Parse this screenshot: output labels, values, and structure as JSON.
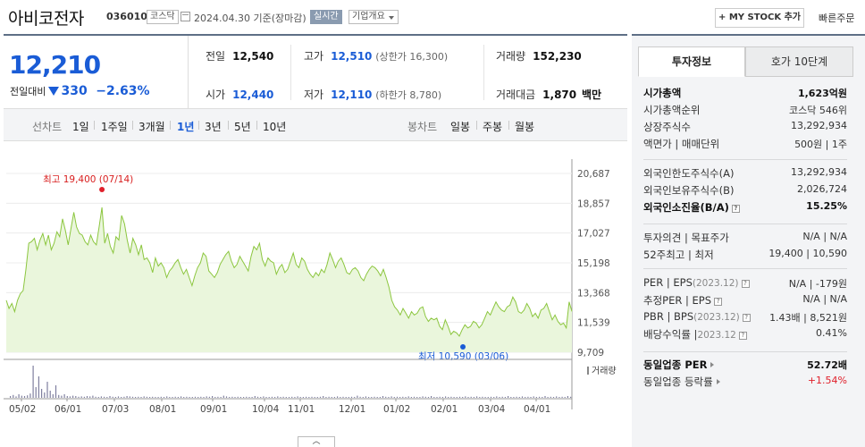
{
  "header": {
    "stock_name": "아비코전자",
    "stock_code": "036010",
    "market_badge": "코스닥",
    "date_text": "2024.04.30  기준(장마감)",
    "realtime_badge": "실시간",
    "company_overview": "기업개요",
    "mystock_button": "+ MY STOCK 추가",
    "quick_order": "빠른주문"
  },
  "summary": {
    "current_price": "12,210",
    "change_label": "전일대비",
    "change_amount": "330",
    "change_percent": "−2.63%",
    "prev_close_label": "전일",
    "prev_close": "12,540",
    "open_label": "시가",
    "open": "12,440",
    "high_label": "고가",
    "high": "12,510",
    "upper_limit": "(상한가 16,300)",
    "low_label": "저가",
    "low": "12,110",
    "lower_limit": "(하한가 8,780)",
    "volume_label": "거래량",
    "volume": "152,230",
    "trade_value_label": "거래대금",
    "trade_value": "1,870",
    "trade_value_unit": "백만"
  },
  "tabs": {
    "line_label": "선차트",
    "periods": [
      "1일",
      "1주일",
      "3개월",
      "1년",
      "3년",
      "5년",
      "10년"
    ],
    "active_period": "1년",
    "candle_label": "봉차트",
    "candle_periods": [
      "일봉",
      "주봉",
      "월봉"
    ]
  },
  "chart_data": {
    "type": "area",
    "y_ticks": [
      "20,687",
      "18,857",
      "17,027",
      "15,198",
      "13,368",
      "11,539",
      "9,709"
    ],
    "ylim": [
      9709,
      20687
    ],
    "x_ticks": [
      "05/02",
      "06/01",
      "07/03",
      "08/01",
      "09/01",
      "10/04",
      "11/01",
      "12/01",
      "01/02",
      "02/01",
      "03/04",
      "04/01"
    ],
    "high_annotation": "최고 19,400 (07/14)",
    "low_annotation": "최저 10,590 (03/06)",
    "volume_legend": "거래량",
    "color": "#8cc63f",
    "series": [
      {
        "values": [
          12900,
          12400,
          12700,
          12200,
          12900,
          13300,
          13500,
          14800,
          16400,
          16500,
          16700,
          16000,
          16600,
          17000,
          16300,
          16900,
          16000,
          16400,
          17100,
          16800,
          17900,
          17200,
          16300,
          17300,
          18300,
          17400,
          17000,
          16900,
          16500,
          16300,
          16900,
          16500,
          16300,
          17400,
          18600,
          16400,
          17000,
          16200,
          15800,
          16800,
          16600,
          18100,
          17600,
          16600,
          15800,
          16700,
          16300,
          15700,
          16300,
          15400,
          15500,
          15200,
          14600,
          15500,
          15000,
          15200,
          14900,
          14300,
          14700,
          14900,
          15200,
          15400,
          14900,
          14500,
          14800,
          14300,
          13800,
          14400,
          14900,
          15200,
          15800,
          15600,
          14700,
          14500,
          14300,
          14600,
          15100,
          15400,
          15700,
          15900,
          15300,
          14900,
          15100,
          15600,
          15300,
          15000,
          14700,
          15600,
          16200,
          16000,
          16400,
          15400,
          15000,
          15500,
          15300,
          15200,
          14500,
          14900,
          15100,
          14600,
          14800,
          15300,
          15800,
          15100,
          14900,
          15500,
          15300,
          14800,
          14500,
          14300,
          14600,
          14400,
          14800,
          14600,
          15100,
          15800,
          15400,
          14900,
          15300,
          15500,
          15100,
          14600,
          14500,
          14800,
          14900,
          14700,
          14300,
          14100,
          14500,
          14800,
          15000,
          14900,
          14700,
          14400,
          14800,
          14300,
          13700,
          12900,
          12500,
          12300,
          12000,
          12400,
          12100,
          11800,
          12200,
          12000,
          12100,
          12400,
          12500,
          11900,
          11600,
          11800,
          11700,
          11800,
          11300,
          11100,
          11700,
          11300,
          10800,
          11000,
          10900,
          10700,
          11100,
          11400,
          11200,
          11300,
          11600,
          11500,
          11200,
          11400,
          11800,
          12200,
          12000,
          12400,
          12800,
          12500,
          12300,
          12200,
          12500,
          12600,
          13100,
          12800,
          12200,
          12100,
          12300,
          12700,
          12400,
          11900,
          12100,
          11800,
          12300,
          12400,
          12700,
          12200,
          11700,
          12000,
          11600,
          11400,
          11500,
          11200,
          12800,
          12210
        ]
      }
    ],
    "volume": [
      0.05,
      0.08,
      0.04,
      0.1,
      0.06,
      0.05,
      0.07,
      0.12,
      0.9,
      0.3,
      0.6,
      0.25,
      0.15,
      0.45,
      0.2,
      0.1,
      0.35,
      0.08,
      0.06,
      0.1,
      0.05,
      0.04,
      0.06,
      0.05,
      0.03,
      0.04,
      0.03,
      0.05,
      0.04,
      0.06,
      0.03,
      0.02,
      0.04,
      0.03,
      0.02,
      0.05,
      0.03,
      0.02,
      0.04,
      0.02,
      0.03,
      0.05,
      0.04,
      0.03,
      0.02,
      0.03,
      0.02,
      0.04,
      0.03,
      0.02,
      0.03,
      0.02,
      0.02,
      0.03,
      0.02,
      0.04,
      0.02,
      0.02,
      0.03,
      0.02,
      0.04,
      0.02,
      0.03,
      0.02,
      0.02,
      0.03,
      0.02,
      0.03,
      0.02,
      0.04,
      0.03,
      0.05,
      0.02,
      0.03,
      0.02,
      0.06,
      0.04,
      0.02,
      0.03,
      0.02,
      0.03,
      0.02,
      0.02,
      0.03,
      0.02,
      0.02,
      0.05,
      0.03,
      0.02,
      0.04,
      0.02,
      0.02,
      0.03,
      0.02,
      0.04,
      0.02,
      0.03,
      0.02,
      0.02,
      0.03,
      0.02,
      0.04,
      0.02,
      0.02,
      0.03,
      0.02,
      0.03,
      0.02,
      0.02,
      0.03,
      0.05,
      0.02,
      0.03,
      0.02,
      0.02,
      0.04,
      0.02,
      0.03,
      0.02,
      0.02,
      0.03,
      0.02,
      0.06,
      0.03,
      0.02,
      0.04,
      0.02,
      0.02,
      0.03,
      0.02,
      0.02,
      0.05,
      0.03,
      0.02,
      0.04,
      0.02,
      0.03,
      0.02,
      0.03,
      0.02,
      0.04,
      0.02,
      0.03,
      0.02,
      0.02,
      0.04,
      0.03,
      0.02,
      0.05,
      0.02,
      0.02,
      0.03,
      0.02,
      0.04,
      0.02,
      0.03,
      0.02,
      0.02,
      0.03,
      0.02,
      0.04,
      0.02,
      0.03,
      0.02,
      0.04,
      0.02,
      0.03,
      0.02,
      0.02,
      0.03,
      0.02,
      0.04,
      0.02,
      0.03,
      0.02,
      0.05,
      0.02,
      0.02,
      0.03,
      0.02,
      0.04,
      0.02,
      0.03,
      0.02,
      0.04,
      0.02,
      0.03,
      0.02,
      0.05,
      0.02,
      0.03,
      0.02,
      0.04,
      0.02,
      0.03,
      0.02,
      0.05,
      0.03
    ]
  },
  "invest_info": {
    "tab_active": "투자정보",
    "tab_inactive": "호가 10단계",
    "rows1": [
      {
        "label": "시가총액",
        "value": "1,623억원",
        "bold": true
      },
      {
        "label": "시가총액순위",
        "value": "코스닥 546위"
      },
      {
        "label": "상장주식수",
        "value": "13,292,934"
      },
      {
        "label": "액면가 | 매매단위",
        "value": "500원 | 1주"
      }
    ],
    "rows2": [
      {
        "label": "외국인한도주식수(A)",
        "value": "13,292,934"
      },
      {
        "label": "외국인보유주식수(B)",
        "value": "2,026,724"
      },
      {
        "label": "외국인소진율(B/A)",
        "value": "15.25%",
        "bold": true
      }
    ],
    "rows3": [
      {
        "label": "투자의견 | 목표주가",
        "value": "N/A | N/A"
      },
      {
        "label": "52주최고 | 최저",
        "value": "19,400 | 10,590"
      }
    ],
    "rows4": [
      {
        "label": "PER | EPS",
        "sub": "(2023.12)",
        "value": "N/A | -179원"
      },
      {
        "label": "추정PER | EPS",
        "value": "N/A | N/A"
      },
      {
        "label": "PBR | BPS",
        "sub": "(2023.12)",
        "value": "1.43배 | 8,521원"
      },
      {
        "label": "배당수익률 |",
        "sub": "2023.12",
        "value": "0.41%"
      }
    ],
    "rows5": [
      {
        "label": "동일업종 PER",
        "value": "52.72배",
        "bold": true
      },
      {
        "label": "동일업종 등락률",
        "value": "+1.54%",
        "red": true
      }
    ]
  }
}
